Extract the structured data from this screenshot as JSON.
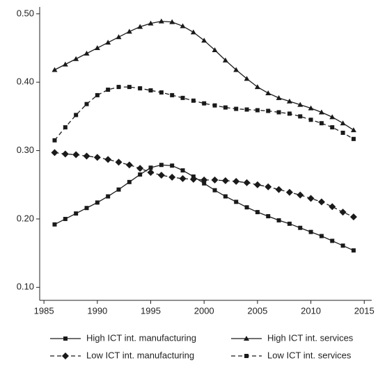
{
  "chart_data": {
    "type": "line",
    "x": [
      1986,
      1987,
      1988,
      1989,
      1990,
      1991,
      1992,
      1993,
      1994,
      1995,
      1996,
      1997,
      1998,
      1999,
      2000,
      2001,
      2002,
      2003,
      2004,
      2005,
      2006,
      2007,
      2008,
      2009,
      2010,
      2011,
      2012,
      2013,
      2014
    ],
    "series": [
      {
        "name": "High ICT int. manufacturing",
        "color": "#1a1a1a",
        "marker": "square",
        "dashed": false,
        "values": [
          0.192,
          0.2,
          0.208,
          0.216,
          0.224,
          0.233,
          0.243,
          0.254,
          0.265,
          0.275,
          0.279,
          0.278,
          0.271,
          0.262,
          0.252,
          0.242,
          0.233,
          0.225,
          0.217,
          0.21,
          0.204,
          0.198,
          0.193,
          0.187,
          0.181,
          0.175,
          0.168,
          0.161,
          0.154
        ]
      },
      {
        "name": "High ICT int. services",
        "color": "#1a1a1a",
        "marker": "triangle",
        "dashed": false,
        "values": [
          0.418,
          0.426,
          0.434,
          0.442,
          0.45,
          0.458,
          0.466,
          0.474,
          0.481,
          0.486,
          0.489,
          0.488,
          0.482,
          0.473,
          0.461,
          0.447,
          0.432,
          0.418,
          0.405,
          0.393,
          0.384,
          0.377,
          0.372,
          0.367,
          0.362,
          0.356,
          0.349,
          0.34,
          0.33
        ]
      },
      {
        "name": "Low ICT int. manufacturing",
        "color": "#1a1a1a",
        "marker": "diamond",
        "dashed": true,
        "values": [
          0.297,
          0.295,
          0.294,
          0.292,
          0.29,
          0.287,
          0.283,
          0.279,
          0.274,
          0.268,
          0.264,
          0.261,
          0.259,
          0.258,
          0.257,
          0.257,
          0.256,
          0.255,
          0.253,
          0.25,
          0.247,
          0.243,
          0.239,
          0.235,
          0.23,
          0.225,
          0.218,
          0.21,
          0.203
        ]
      },
      {
        "name": "Low ICT int. services",
        "color": "#1a1a1a",
        "marker": "square",
        "dashed": true,
        "values": [
          0.315,
          0.334,
          0.352,
          0.368,
          0.381,
          0.389,
          0.393,
          0.393,
          0.391,
          0.388,
          0.385,
          0.381,
          0.377,
          0.373,
          0.369,
          0.366,
          0.363,
          0.361,
          0.36,
          0.359,
          0.358,
          0.356,
          0.354,
          0.35,
          0.345,
          0.34,
          0.334,
          0.326,
          0.317
        ]
      }
    ],
    "xlim": [
      1984.6,
      2015.7
    ],
    "xticks": [
      1985,
      1990,
      1995,
      2000,
      2005,
      2010,
      2015
    ],
    "ylim": [
      0.081,
      0.51
    ],
    "yticks": [
      {
        "value": 0.1,
        "label": "0.10"
      },
      {
        "value": 0.2,
        "label": "0.20"
      },
      {
        "value": 0.3,
        "label": "0.30"
      },
      {
        "value": 0.4,
        "label": "0.40"
      },
      {
        "value": 0.5,
        "label": "0.50"
      }
    ],
    "grid": false
  }
}
